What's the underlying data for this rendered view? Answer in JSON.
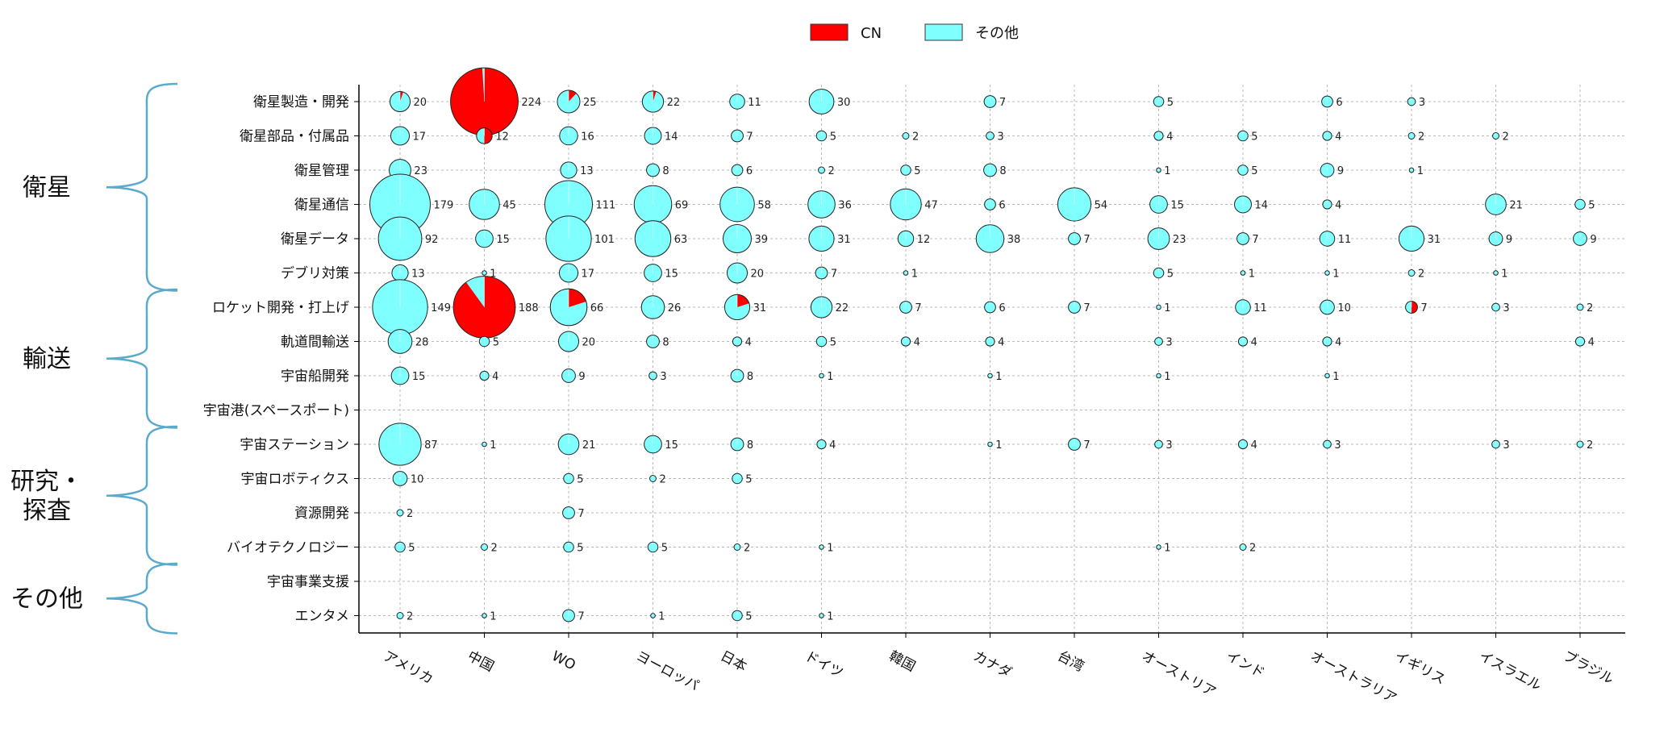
{
  "groups": [
    {
      "label": "衛星",
      "rows": [
        "衛星製造・開発",
        "衛星部品・付属品",
        "衛星管理",
        "衛星通信",
        "衛星データ",
        "デブリ対策"
      ]
    },
    {
      "label": "輸送",
      "rows": [
        "ロケット開発・打上げ",
        "軌道間輸送",
        "宇宙船開発",
        "宇宙港(スペースポート)"
      ]
    },
    {
      "label": "研究・\n探査",
      "rows": [
        "宇宙ステーション",
        "宇宙ロボティクス",
        "資源開発",
        "バイオテクノロジー"
      ]
    },
    {
      "label": "その他",
      "rows": [
        "宇宙事業支援",
        "エンタメ"
      ]
    }
  ],
  "chart_data": {
    "type": "scatter",
    "subtype": "pie-bubble matrix",
    "legend": {
      "placement": "top-center",
      "entries": [
        {
          "name": "CN",
          "color": "#ff0000"
        },
        {
          "name": "その他",
          "color": "#80ffff"
        }
      ]
    },
    "grid": true,
    "colors": {
      "cn": "#ff0000",
      "other": "#80ffff",
      "group_bracket": "#5aaacc"
    },
    "columns": [
      "アメリカ",
      "中国",
      "WO",
      "ヨーロッパ",
      "日本",
      "ドイツ",
      "韓国",
      "カナダ",
      "台湾",
      "オーストリア",
      "インド",
      "オーストラリア",
      "イギリス",
      "イスラエル",
      "ブラジル"
    ],
    "rows": [
      "衛星製造・開発",
      "衛星部品・付属品",
      "衛星管理",
      "衛星通信",
      "衛星データ",
      "デブリ対策",
      "ロケット開発・打上げ",
      "軌道間輸送",
      "宇宙船開発",
      "宇宙港(スペースポート)",
      "宇宙ステーション",
      "宇宙ロボティクス",
      "資源開発",
      "バイオテクノロジー",
      "宇宙事業支援",
      "エンタメ"
    ],
    "points": [
      {
        "row": 0,
        "col": 0,
        "value": 20,
        "cn_fraction": 0.05
      },
      {
        "row": 0,
        "col": 1,
        "value": 224,
        "cn_fraction": 0.99
      },
      {
        "row": 0,
        "col": 2,
        "value": 25,
        "cn_fraction": 0.12
      },
      {
        "row": 0,
        "col": 3,
        "value": 22,
        "cn_fraction": 0.05
      },
      {
        "row": 0,
        "col": 4,
        "value": 11,
        "cn_fraction": 0
      },
      {
        "row": 0,
        "col": 5,
        "value": 30,
        "cn_fraction": 0
      },
      {
        "row": 0,
        "col": 7,
        "value": 7,
        "cn_fraction": 0
      },
      {
        "row": 0,
        "col": 9,
        "value": 5,
        "cn_fraction": 0
      },
      {
        "row": 0,
        "col": 11,
        "value": 6,
        "cn_fraction": 0
      },
      {
        "row": 0,
        "col": 12,
        "value": 3,
        "cn_fraction": 0
      },
      {
        "row": 1,
        "col": 0,
        "value": 17,
        "cn_fraction": 0
      },
      {
        "row": 1,
        "col": 1,
        "value": 12,
        "cn_fraction": 0.5
      },
      {
        "row": 1,
        "col": 2,
        "value": 16,
        "cn_fraction": 0
      },
      {
        "row": 1,
        "col": 3,
        "value": 14,
        "cn_fraction": 0
      },
      {
        "row": 1,
        "col": 4,
        "value": 7,
        "cn_fraction": 0
      },
      {
        "row": 1,
        "col": 5,
        "value": 5,
        "cn_fraction": 0
      },
      {
        "row": 1,
        "col": 6,
        "value": 2,
        "cn_fraction": 0
      },
      {
        "row": 1,
        "col": 7,
        "value": 3,
        "cn_fraction": 0
      },
      {
        "row": 1,
        "col": 9,
        "value": 4,
        "cn_fraction": 0
      },
      {
        "row": 1,
        "col": 10,
        "value": 5,
        "cn_fraction": 0
      },
      {
        "row": 1,
        "col": 11,
        "value": 4,
        "cn_fraction": 0
      },
      {
        "row": 1,
        "col": 12,
        "value": 2,
        "cn_fraction": 0
      },
      {
        "row": 1,
        "col": 13,
        "value": 2,
        "cn_fraction": 0
      },
      {
        "row": 2,
        "col": 0,
        "value": 23,
        "cn_fraction": 0
      },
      {
        "row": 2,
        "col": 2,
        "value": 13,
        "cn_fraction": 0
      },
      {
        "row": 2,
        "col": 3,
        "value": 8,
        "cn_fraction": 0
      },
      {
        "row": 2,
        "col": 4,
        "value": 6,
        "cn_fraction": 0
      },
      {
        "row": 2,
        "col": 5,
        "value": 2,
        "cn_fraction": 0
      },
      {
        "row": 2,
        "col": 6,
        "value": 5,
        "cn_fraction": 0
      },
      {
        "row": 2,
        "col": 7,
        "value": 8,
        "cn_fraction": 0
      },
      {
        "row": 2,
        "col": 9,
        "value": 1,
        "cn_fraction": 0
      },
      {
        "row": 2,
        "col": 10,
        "value": 5,
        "cn_fraction": 0
      },
      {
        "row": 2,
        "col": 11,
        "value": 9,
        "cn_fraction": 0
      },
      {
        "row": 2,
        "col": 12,
        "value": 1,
        "cn_fraction": 0
      },
      {
        "row": 3,
        "col": 0,
        "value": 179,
        "cn_fraction": 0
      },
      {
        "row": 3,
        "col": 1,
        "value": 45,
        "cn_fraction": 0
      },
      {
        "row": 3,
        "col": 2,
        "value": 111,
        "cn_fraction": 0
      },
      {
        "row": 3,
        "col": 3,
        "value": 69,
        "cn_fraction": 0
      },
      {
        "row": 3,
        "col": 4,
        "value": 58,
        "cn_fraction": 0
      },
      {
        "row": 3,
        "col": 5,
        "value": 36,
        "cn_fraction": 0
      },
      {
        "row": 3,
        "col": 6,
        "value": 47,
        "cn_fraction": 0
      },
      {
        "row": 3,
        "col": 7,
        "value": 6,
        "cn_fraction": 0
      },
      {
        "row": 3,
        "col": 8,
        "value": 54,
        "cn_fraction": 0
      },
      {
        "row": 3,
        "col": 9,
        "value": 15,
        "cn_fraction": 0
      },
      {
        "row": 3,
        "col": 10,
        "value": 14,
        "cn_fraction": 0
      },
      {
        "row": 3,
        "col": 11,
        "value": 4,
        "cn_fraction": 0
      },
      {
        "row": 3,
        "col": 13,
        "value": 21,
        "cn_fraction": 0
      },
      {
        "row": 3,
        "col": 14,
        "value": 5,
        "cn_fraction": 0
      },
      {
        "row": 4,
        "col": 0,
        "value": 92,
        "cn_fraction": 0
      },
      {
        "row": 4,
        "col": 1,
        "value": 15,
        "cn_fraction": 0
      },
      {
        "row": 4,
        "col": 2,
        "value": 101,
        "cn_fraction": 0
      },
      {
        "row": 4,
        "col": 3,
        "value": 63,
        "cn_fraction": 0
      },
      {
        "row": 4,
        "col": 4,
        "value": 39,
        "cn_fraction": 0
      },
      {
        "row": 4,
        "col": 5,
        "value": 31,
        "cn_fraction": 0
      },
      {
        "row": 4,
        "col": 6,
        "value": 12,
        "cn_fraction": 0
      },
      {
        "row": 4,
        "col": 7,
        "value": 38,
        "cn_fraction": 0
      },
      {
        "row": 4,
        "col": 8,
        "value": 7,
        "cn_fraction": 0
      },
      {
        "row": 4,
        "col": 9,
        "value": 23,
        "cn_fraction": 0
      },
      {
        "row": 4,
        "col": 10,
        "value": 7,
        "cn_fraction": 0
      },
      {
        "row": 4,
        "col": 11,
        "value": 11,
        "cn_fraction": 0
      },
      {
        "row": 4,
        "col": 12,
        "value": 31,
        "cn_fraction": 0
      },
      {
        "row": 4,
        "col": 13,
        "value": 9,
        "cn_fraction": 0
      },
      {
        "row": 4,
        "col": 14,
        "value": 9,
        "cn_fraction": 0
      },
      {
        "row": 5,
        "col": 0,
        "value": 13,
        "cn_fraction": 0
      },
      {
        "row": 5,
        "col": 1,
        "value": 1,
        "cn_fraction": 0
      },
      {
        "row": 5,
        "col": 2,
        "value": 17,
        "cn_fraction": 0
      },
      {
        "row": 5,
        "col": 3,
        "value": 15,
        "cn_fraction": 0
      },
      {
        "row": 5,
        "col": 4,
        "value": 20,
        "cn_fraction": 0
      },
      {
        "row": 5,
        "col": 5,
        "value": 7,
        "cn_fraction": 0
      },
      {
        "row": 5,
        "col": 6,
        "value": 1,
        "cn_fraction": 0
      },
      {
        "row": 5,
        "col": 9,
        "value": 5,
        "cn_fraction": 0
      },
      {
        "row": 5,
        "col": 10,
        "value": 1,
        "cn_fraction": 0
      },
      {
        "row": 5,
        "col": 11,
        "value": 1,
        "cn_fraction": 0
      },
      {
        "row": 5,
        "col": 12,
        "value": 2,
        "cn_fraction": 0
      },
      {
        "row": 5,
        "col": 13,
        "value": 1,
        "cn_fraction": 0
      },
      {
        "row": 6,
        "col": 0,
        "value": 149,
        "cn_fraction": 0
      },
      {
        "row": 6,
        "col": 1,
        "value": 188,
        "cn_fraction": 0.9
      },
      {
        "row": 6,
        "col": 2,
        "value": 66,
        "cn_fraction": 0.2
      },
      {
        "row": 6,
        "col": 3,
        "value": 26,
        "cn_fraction": 0
      },
      {
        "row": 6,
        "col": 4,
        "value": 31,
        "cn_fraction": 0.2
      },
      {
        "row": 6,
        "col": 5,
        "value": 22,
        "cn_fraction": 0
      },
      {
        "row": 6,
        "col": 6,
        "value": 7,
        "cn_fraction": 0
      },
      {
        "row": 6,
        "col": 7,
        "value": 6,
        "cn_fraction": 0
      },
      {
        "row": 6,
        "col": 8,
        "value": 7,
        "cn_fraction": 0
      },
      {
        "row": 6,
        "col": 9,
        "value": 1,
        "cn_fraction": 0
      },
      {
        "row": 6,
        "col": 10,
        "value": 11,
        "cn_fraction": 0
      },
      {
        "row": 6,
        "col": 11,
        "value": 10,
        "cn_fraction": 0
      },
      {
        "row": 6,
        "col": 12,
        "value": 7,
        "cn_fraction": 0.5
      },
      {
        "row": 6,
        "col": 13,
        "value": 3,
        "cn_fraction": 0
      },
      {
        "row": 6,
        "col": 14,
        "value": 2,
        "cn_fraction": 0
      },
      {
        "row": 7,
        "col": 0,
        "value": 28,
        "cn_fraction": 0
      },
      {
        "row": 7,
        "col": 1,
        "value": 5,
        "cn_fraction": 0
      },
      {
        "row": 7,
        "col": 2,
        "value": 20,
        "cn_fraction": 0
      },
      {
        "row": 7,
        "col": 3,
        "value": 8,
        "cn_fraction": 0
      },
      {
        "row": 7,
        "col": 4,
        "value": 4,
        "cn_fraction": 0
      },
      {
        "row": 7,
        "col": 5,
        "value": 5,
        "cn_fraction": 0
      },
      {
        "row": 7,
        "col": 6,
        "value": 4,
        "cn_fraction": 0
      },
      {
        "row": 7,
        "col": 7,
        "value": 4,
        "cn_fraction": 0
      },
      {
        "row": 7,
        "col": 9,
        "value": 3,
        "cn_fraction": 0
      },
      {
        "row": 7,
        "col": 10,
        "value": 4,
        "cn_fraction": 0
      },
      {
        "row": 7,
        "col": 11,
        "value": 4,
        "cn_fraction": 0
      },
      {
        "row": 7,
        "col": 14,
        "value": 4,
        "cn_fraction": 0
      },
      {
        "row": 8,
        "col": 0,
        "value": 15,
        "cn_fraction": 0
      },
      {
        "row": 8,
        "col": 1,
        "value": 4,
        "cn_fraction": 0
      },
      {
        "row": 8,
        "col": 2,
        "value": 9,
        "cn_fraction": 0
      },
      {
        "row": 8,
        "col": 3,
        "value": 3,
        "cn_fraction": 0
      },
      {
        "row": 8,
        "col": 4,
        "value": 8,
        "cn_fraction": 0
      },
      {
        "row": 8,
        "col": 5,
        "value": 1,
        "cn_fraction": 0
      },
      {
        "row": 8,
        "col": 7,
        "value": 1,
        "cn_fraction": 0
      },
      {
        "row": 8,
        "col": 9,
        "value": 1,
        "cn_fraction": 0
      },
      {
        "row": 8,
        "col": 11,
        "value": 1,
        "cn_fraction": 0
      },
      {
        "row": 10,
        "col": 0,
        "value": 87,
        "cn_fraction": 0
      },
      {
        "row": 10,
        "col": 1,
        "value": 1,
        "cn_fraction": 0
      },
      {
        "row": 10,
        "col": 2,
        "value": 21,
        "cn_fraction": 0
      },
      {
        "row": 10,
        "col": 3,
        "value": 15,
        "cn_fraction": 0
      },
      {
        "row": 10,
        "col": 4,
        "value": 8,
        "cn_fraction": 0
      },
      {
        "row": 10,
        "col": 5,
        "value": 4,
        "cn_fraction": 0
      },
      {
        "row": 10,
        "col": 7,
        "value": 1,
        "cn_fraction": 0
      },
      {
        "row": 10,
        "col": 8,
        "value": 7,
        "cn_fraction": 0
      },
      {
        "row": 10,
        "col": 9,
        "value": 3,
        "cn_fraction": 0
      },
      {
        "row": 10,
        "col": 10,
        "value": 4,
        "cn_fraction": 0
      },
      {
        "row": 10,
        "col": 11,
        "value": 3,
        "cn_fraction": 0
      },
      {
        "row": 10,
        "col": 13,
        "value": 3,
        "cn_fraction": 0
      },
      {
        "row": 10,
        "col": 14,
        "value": 2,
        "cn_fraction": 0
      },
      {
        "row": 11,
        "col": 0,
        "value": 10,
        "cn_fraction": 0
      },
      {
        "row": 11,
        "col": 2,
        "value": 5,
        "cn_fraction": 0
      },
      {
        "row": 11,
        "col": 3,
        "value": 2,
        "cn_fraction": 0
      },
      {
        "row": 11,
        "col": 4,
        "value": 5,
        "cn_fraction": 0
      },
      {
        "row": 12,
        "col": 0,
        "value": 2,
        "cn_fraction": 0
      },
      {
        "row": 12,
        "col": 2,
        "value": 7,
        "cn_fraction": 0
      },
      {
        "row": 13,
        "col": 0,
        "value": 5,
        "cn_fraction": 0
      },
      {
        "row": 13,
        "col": 1,
        "value": 2,
        "cn_fraction": 0
      },
      {
        "row": 13,
        "col": 2,
        "value": 5,
        "cn_fraction": 0
      },
      {
        "row": 13,
        "col": 3,
        "value": 5,
        "cn_fraction": 0
      },
      {
        "row": 13,
        "col": 4,
        "value": 2,
        "cn_fraction": 0
      },
      {
        "row": 13,
        "col": 5,
        "value": 1,
        "cn_fraction": 0
      },
      {
        "row": 13,
        "col": 9,
        "value": 1,
        "cn_fraction": 0
      },
      {
        "row": 13,
        "col": 10,
        "value": 2,
        "cn_fraction": 0
      },
      {
        "row": 15,
        "col": 0,
        "value": 2,
        "cn_fraction": 0
      },
      {
        "row": 15,
        "col": 1,
        "value": 1,
        "cn_fraction": 0
      },
      {
        "row": 15,
        "col": 2,
        "value": 7,
        "cn_fraction": 0
      },
      {
        "row": 15,
        "col": 3,
        "value": 1,
        "cn_fraction": 0
      },
      {
        "row": 15,
        "col": 4,
        "value": 5,
        "cn_fraction": 0
      },
      {
        "row": 15,
        "col": 5,
        "value": 1,
        "cn_fraction": 0
      }
    ]
  }
}
